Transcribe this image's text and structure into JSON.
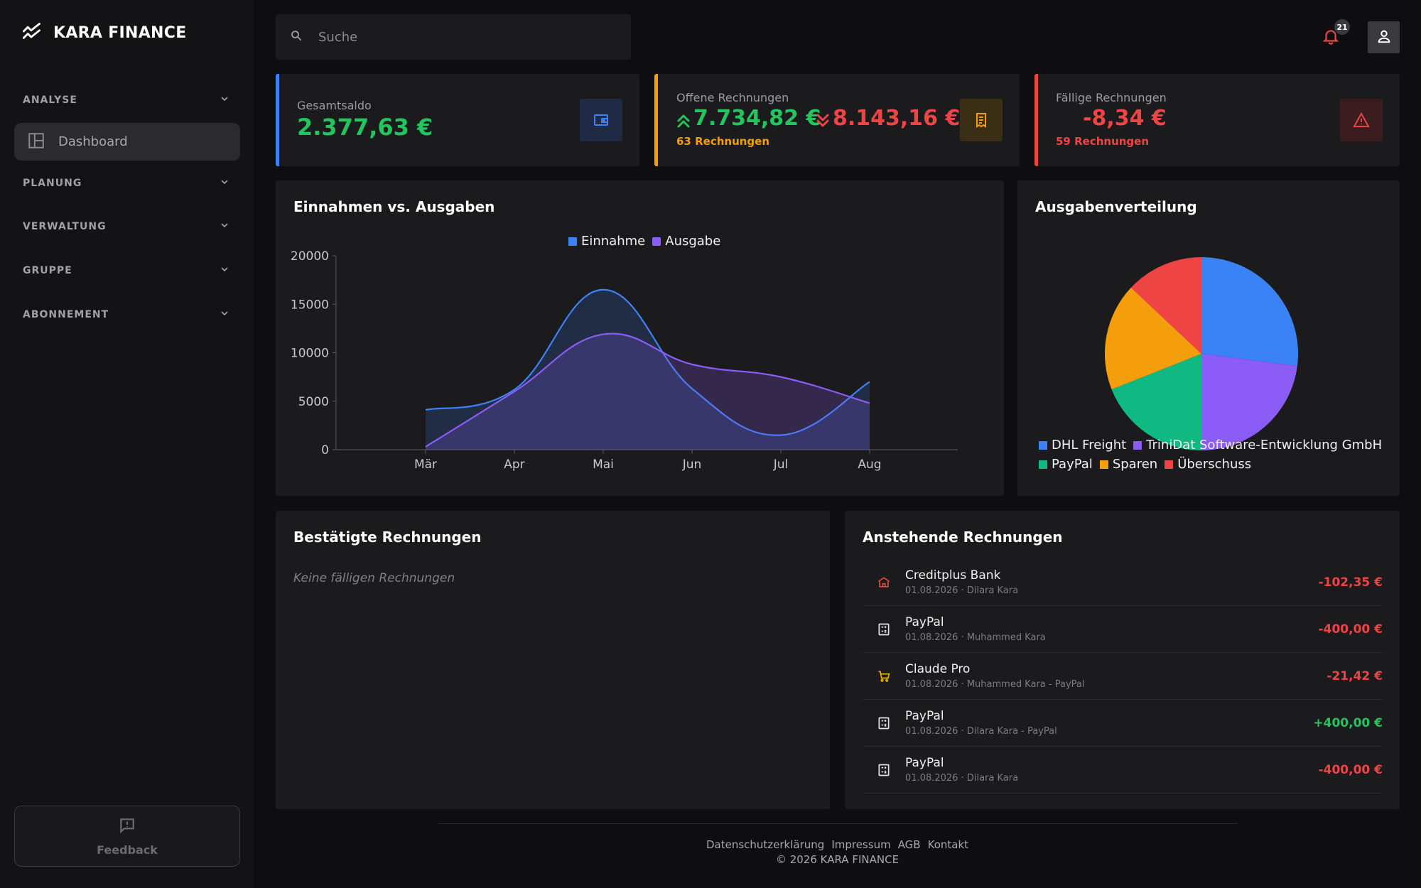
{
  "app": {
    "name": "KARA FINANCE"
  },
  "sidebar": {
    "sections": [
      {
        "label": "ANALYSE"
      },
      {
        "label": "PLANUNG"
      },
      {
        "label": "VERWALTUNG"
      },
      {
        "label": "GRUPPE"
      },
      {
        "label": "ABONNEMENT"
      }
    ],
    "active_item": {
      "label": "Dashboard"
    },
    "feedback_label": "Feedback"
  },
  "topbar": {
    "search_placeholder": "Suche",
    "notification_count": "21"
  },
  "stats": {
    "balance": {
      "title": "Gesamtsaldo",
      "value": "2.377,63 €",
      "accent": "#3b82f6"
    },
    "open": {
      "title": "Offene Rechnungen",
      "income": "7.734,82 €",
      "expense": "8.143,16 €",
      "count": "63 Rechnungen",
      "accent": "#f59e0b"
    },
    "due": {
      "title": "Fällige Rechnungen",
      "value": "-8,34 €",
      "count": "59 Rechnungen",
      "accent": "#ef4444"
    }
  },
  "chart_card": {
    "title": "Einnahmen vs. Ausgaben"
  },
  "pie_card": {
    "title": "Ausgabenverteilung"
  },
  "confirmed": {
    "title": "Bestätigte Rechnungen",
    "empty_text": "Keine fälligen Rechnungen"
  },
  "pending": {
    "title": "Anstehende Rechnungen",
    "rows": [
      {
        "icon": "bank-icon",
        "name": "Creditplus Bank",
        "meta": "01.08.2026 · Dilara Kara",
        "amount": "-102,35 €",
        "amount_color": "#ef4444",
        "icon_color": "#ef4444"
      },
      {
        "icon": "calculator-icon",
        "name": "PayPal",
        "meta": "01.08.2026 · Muhammed Kara",
        "amount": "-400,00 €",
        "amount_color": "#ef4444",
        "icon_color": "#e5e5e5"
      },
      {
        "icon": "cart-icon",
        "name": "Claude Pro",
        "meta": "01.08.2026 · Muhammed Kara - PayPal",
        "amount": "-21,42 €",
        "amount_color": "#ef4444",
        "icon_color": "#eab308"
      },
      {
        "icon": "calculator-icon",
        "name": "PayPal",
        "meta": "01.08.2026 · Dilara Kara - PayPal",
        "amount": "+400,00 €",
        "amount_color": "#22c55e",
        "icon_color": "#e5e5e5"
      },
      {
        "icon": "calculator-icon",
        "name": "PayPal",
        "meta": "01.08.2026 · Dilara Kara",
        "amount": "-400,00 €",
        "amount_color": "#ef4444",
        "icon_color": "#e5e5e5"
      }
    ]
  },
  "footer": {
    "links": [
      "Datenschutzerklärung",
      "Impressum",
      "AGB",
      "Kontakt"
    ],
    "copyright": "© 2026 KARA FINANCE"
  },
  "chart_data": [
    {
      "type": "area",
      "title": "Einnahmen vs. Ausgaben",
      "categories": [
        "Mär",
        "Apr",
        "Mai",
        "Jun",
        "Jul",
        "Aug"
      ],
      "yticks": [
        "0",
        "5000",
        "10000",
        "15000",
        "20000"
      ],
      "ylim": [
        0,
        20000
      ],
      "legend_position": "top",
      "series": [
        {
          "name": "Einnahme",
          "color": "#3b82f6",
          "values": [
            4100,
            6200,
            16500,
            6300,
            1500,
            7000
          ]
        },
        {
          "name": "Ausgabe",
          "color": "#8b5cf6",
          "values": [
            300,
            6000,
            11900,
            8800,
            7500,
            4800
          ]
        }
      ]
    },
    {
      "type": "pie",
      "title": "Ausgabenverteilung",
      "legend_position": "bottom",
      "slices": [
        {
          "label": "DHL Freight",
          "value": 27,
          "color": "#3b82f6"
        },
        {
          "label": "TriniDat Software-Entwicklung GmbH",
          "value": 23,
          "color": "#8b5cf6"
        },
        {
          "label": "PayPal",
          "value": 19,
          "color": "#10b981"
        },
        {
          "label": "Sparen",
          "value": 18,
          "color": "#f59e0b"
        },
        {
          "label": "Überschuss",
          "value": 13,
          "color": "#ef4444"
        }
      ]
    }
  ]
}
